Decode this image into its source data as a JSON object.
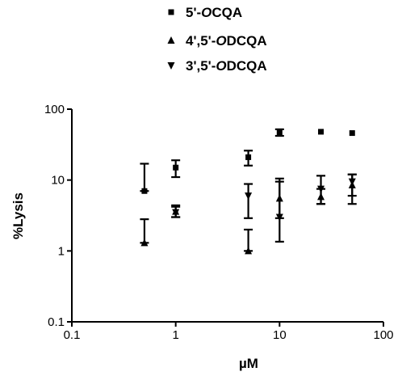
{
  "chart_data": {
    "type": "scatter",
    "xlabel": "µM",
    "ylabel": "%Lysis",
    "xscale": "log",
    "yscale": "log",
    "xlim": [
      0.1,
      100
    ],
    "ylim": [
      0.1,
      100
    ],
    "x_ticks": [
      0.1,
      1,
      10,
      100
    ],
    "x_tick_labels": [
      "0.1",
      "1",
      "10",
      "100"
    ],
    "y_ticks": [
      0.1,
      1,
      10,
      100
    ],
    "y_tick_labels": [
      "0.1",
      "1",
      "10",
      "100"
    ],
    "grid": false,
    "legend_position": "top-center",
    "legend": [
      {
        "prefix": "5'-",
        "italic": "O",
        "suffix": "CQA",
        "marker": "square"
      },
      {
        "prefix": "4',5'-",
        "italic": "O",
        "suffix": "DCQA",
        "marker": "triangle-up"
      },
      {
        "prefix": "3',5'-",
        "italic": "O",
        "suffix": "DCQA",
        "marker": "triangle-down"
      }
    ],
    "series": [
      {
        "marker": "square",
        "points": [
          {
            "x": 0.5,
            "y": 7,
            "err_low": 7,
            "err_high": 17
          },
          {
            "x": 1,
            "y": 15,
            "err_low": 11,
            "err_high": 19
          },
          {
            "x": 5,
            "y": 21,
            "err_low": 16,
            "err_high": 26
          },
          {
            "x": 10,
            "y": 47,
            "err_low": 42,
            "err_high": 52
          },
          {
            "x": 25,
            "y": 48
          },
          {
            "x": 50,
            "y": 46
          }
        ]
      },
      {
        "marker": "triangle-up",
        "points": [
          {
            "x": 0.5,
            "y": 1.3,
            "err_low": 1.3,
            "err_high": 2.8
          },
          {
            "x": 1,
            "y": 3.6,
            "err_low": 3.0,
            "err_high": 4.4
          },
          {
            "x": 5,
            "y": 1.0,
            "err_low": 1.0,
            "err_high": 2.0
          },
          {
            "x": 10,
            "y": 5.5,
            "err_low": 2.9,
            "err_high": 9.5
          },
          {
            "x": 25,
            "y": 5.8,
            "err_low": 4.6,
            "err_high": 7.5
          },
          {
            "x": 50,
            "y": 8.5,
            "err_low": 4.6,
            "err_high": 12
          }
        ]
      },
      {
        "marker": "triangle-down",
        "points": [
          {
            "x": 1,
            "y": 3.5,
            "err_low": 3.0,
            "err_high": 4.2
          },
          {
            "x": 5,
            "y": 6,
            "err_low": 2.9,
            "err_high": 8.8
          },
          {
            "x": 10,
            "y": 3,
            "err_low": 1.35,
            "err_high": 10.5
          },
          {
            "x": 25,
            "y": 7.5,
            "err_low": 4.6,
            "err_high": 11.5
          },
          {
            "x": 50,
            "y": 9.5,
            "err_low": 6,
            "err_high": 12
          }
        ]
      }
    ]
  }
}
